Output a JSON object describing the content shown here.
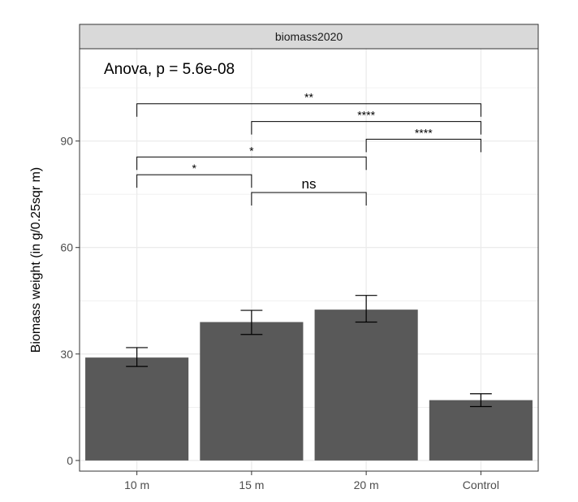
{
  "chart_data": {
    "type": "bar",
    "facet_title": "biomass2020",
    "annotation": "Anova, p = 5.6e-08",
    "categories": [
      "10 m",
      "15 m",
      "20 m",
      "Control"
    ],
    "values": [
      29,
      39,
      42.5,
      17
    ],
    "error_low": [
      26.5,
      35.5,
      39,
      15.2
    ],
    "error_high": [
      31.8,
      42.3,
      46.5,
      18.8
    ],
    "ylabel": "Biomass weight (in g/0.25sqr m)",
    "xlabel": "",
    "ylim": [
      -3,
      116
    ],
    "yticks": [
      0,
      30,
      60,
      90
    ],
    "grid": true,
    "colors": {
      "bar": "#595959",
      "grid": "#ebebeb",
      "strip": "#d9d9d9"
    },
    "comparisons": [
      {
        "from": 0,
        "to": 3,
        "y": 100.5,
        "label": "**"
      },
      {
        "from": 1,
        "to": 3,
        "y": 95.5,
        "label": "****"
      },
      {
        "from": 2,
        "to": 3,
        "y": 90.5,
        "label": "****"
      },
      {
        "from": 0,
        "to": 2,
        "y": 85.5,
        "label": "*"
      },
      {
        "from": 0,
        "to": 1,
        "y": 80.5,
        "label": "*"
      },
      {
        "from": 1,
        "to": 2,
        "y": 75.5,
        "label": "ns"
      }
    ]
  }
}
